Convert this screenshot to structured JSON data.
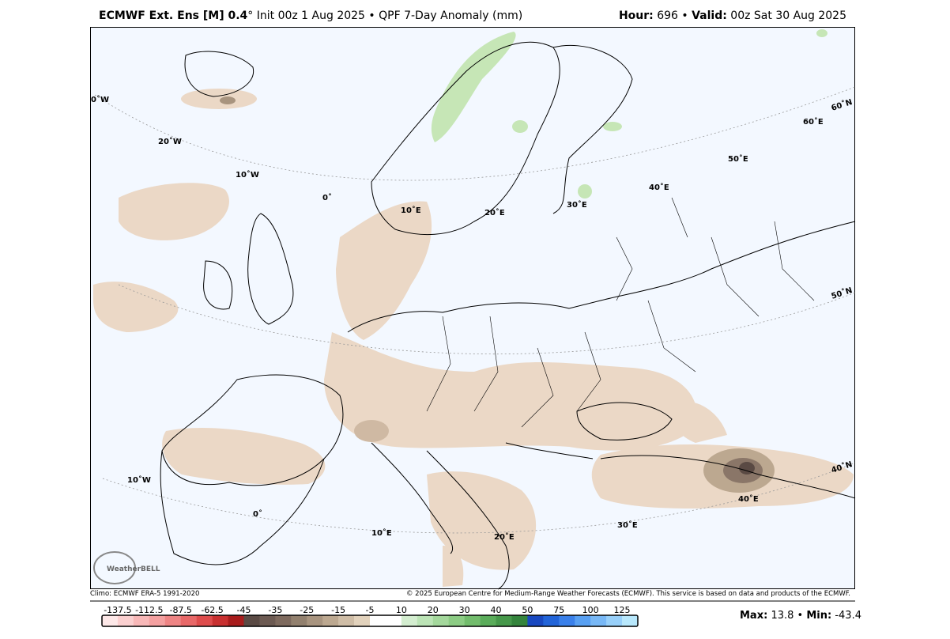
{
  "header": {
    "title_bold": "ECMWF Ext. Ens [M] 0.4",
    "title_degree": "°",
    "title_rest": "Init 00z 1 Aug 2025 • QPF 7-Day Anomaly (mm)",
    "hour_label": "Hour:",
    "hour": 696,
    "sep": "•",
    "valid_label": "Valid:",
    "valid": "00z Sat 30 Aug 2025"
  },
  "map": {
    "graticule_labels": [
      "0˚W",
      "20˚W",
      "10˚W",
      "0˚",
      "10˚E",
      "20˚E",
      "30˚E",
      "40˚E",
      "50˚E",
      "60˚E",
      "60˚N",
      "50˚N",
      "40˚N",
      "10˚W",
      "0˚",
      "10˚E",
      "20˚E",
      "30˚E",
      "40˚E"
    ],
    "logo": "WeatherBELL"
  },
  "footer": {
    "climo": "Climo: ECMWF ERA-5 1991-2020",
    "copyright": "© 2025 European Centre for Medium-Range Weather Forecasts (ECMWF). This service is based on data and products of the ECMWF."
  },
  "colorbar": {
    "ticks": [
      -137.5,
      -112.5,
      -87.5,
      -62.5,
      -45,
      -35,
      -25,
      -15,
      -5,
      10,
      20,
      30,
      40,
      50,
      75,
      100,
      125
    ],
    "colors": [
      "#fde8e8",
      "#fbd0d0",
      "#f8b8b8",
      "#f4a0a0",
      "#ee8484",
      "#e86868",
      "#de4c4c",
      "#c83030",
      "#a81c1c",
      "#5a4a44",
      "#6c5a52",
      "#7e6a5e",
      "#92806e",
      "#a8947f",
      "#bca890",
      "#cfbda6",
      "#e2d2bc",
      "#ffffff",
      "#ffffff",
      "#d4eed0",
      "#bce4b6",
      "#a4d89c",
      "#8ccc84",
      "#72bc6c",
      "#5aac5a",
      "#46984a",
      "#34843c",
      "#1848c0",
      "#2264d8",
      "#3a80ea",
      "#58a0f2",
      "#78b8f6",
      "#98d0fa",
      "#b8e8fc"
    ]
  },
  "stats": {
    "max_label": "Max:",
    "max": 13.8,
    "sep": "•",
    "min_label": "Min:",
    "min": -43.4
  }
}
